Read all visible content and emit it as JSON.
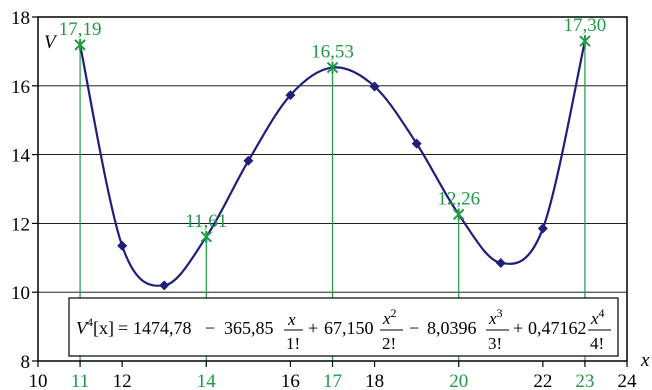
{
  "chart_data": {
    "type": "line",
    "xlabel": "x",
    "ylabel": "V",
    "xlim": [
      10,
      24
    ],
    "ylim": [
      8,
      18
    ],
    "x_ticks": [
      10,
      11,
      12,
      14,
      16,
      17,
      18,
      20,
      22,
      23,
      24
    ],
    "highlight_ticks": [
      11,
      14,
      17,
      20,
      23
    ],
    "y_ticks": [
      8,
      10,
      12,
      14,
      16,
      18
    ],
    "grid": "horizontal",
    "series": [
      {
        "values_x": [
          11,
          12,
          13,
          14,
          15,
          16,
          17,
          18,
          19,
          20,
          21,
          22,
          23
        ],
        "values_y": [
          17.19,
          11.35,
          10.2,
          11.61,
          13.82,
          15.73,
          16.53,
          15.98,
          14.32,
          12.26,
          10.85,
          11.85,
          17.3
        ]
      }
    ],
    "highlighted_points": [
      {
        "x": 11,
        "y": 17.19,
        "label": "17,19"
      },
      {
        "x": 14,
        "y": 11.61,
        "label": "11,61"
      },
      {
        "x": 17,
        "y": 16.53,
        "label": "16,53"
      },
      {
        "x": 20,
        "y": 12.26,
        "label": "12,26"
      },
      {
        "x": 23,
        "y": 17.3,
        "label": "17,30"
      }
    ],
    "formula": {
      "lhs": "V",
      "lhs_sup": "4",
      "lhs_arg": "[x]",
      "c0": "1474,78",
      "c1": "365,85",
      "c2": "67,150",
      "c3": "8,0396",
      "c4": "0,47162",
      "num1": "x",
      "num2": "x",
      "num3": "x",
      "num4": "x",
      "exp2": "2",
      "exp3": "3",
      "exp4": "4",
      "den1": "1!",
      "den2": "2!",
      "den3": "3!",
      "den4": "4!"
    },
    "colors": {
      "line": "#1f1f7a",
      "marker": "#1f1f7a",
      "highlight": "#1e9a45",
      "grid": "#000000",
      "axis": "#000000"
    }
  }
}
